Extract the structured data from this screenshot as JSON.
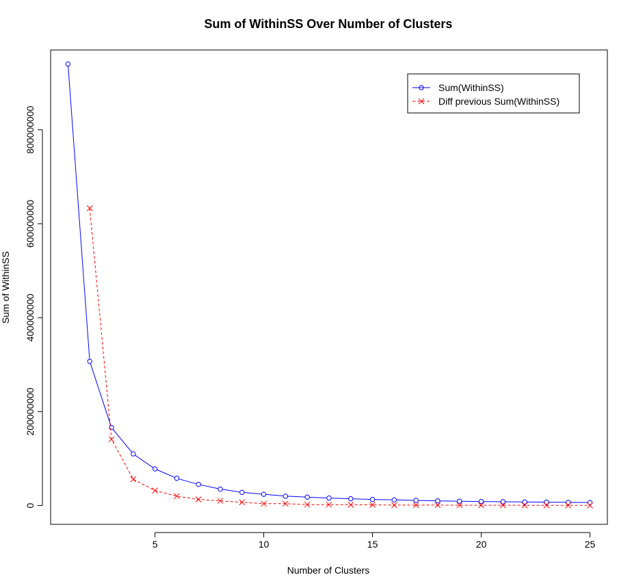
{
  "chart_data": {
    "type": "line",
    "title": "Sum of WithinSS Over Number of Clusters",
    "xlabel": "Number of Clusters",
    "ylabel": "Sum of WithinSS",
    "xlim": [
      0.2,
      25.8
    ],
    "ylim": [
      -40000000,
      970000000
    ],
    "x_ticks": [
      5,
      10,
      15,
      20,
      25
    ],
    "y_ticks": [
      0,
      200000000,
      400000000,
      600000000,
      800000000
    ],
    "y_tick_labels": [
      "0",
      "200000000",
      "400000000",
      "600000000",
      "800000000"
    ],
    "grid": false,
    "legend_position": "top-right",
    "series": [
      {
        "name": "Sum(WithinSS)",
        "color": "#0000ff",
        "marker": "circle",
        "line": "solid",
        "x": [
          1,
          2,
          3,
          4,
          5,
          6,
          7,
          8,
          9,
          10,
          11,
          12,
          13,
          14,
          15,
          16,
          17,
          18,
          19,
          20,
          21,
          22,
          23,
          24,
          25
        ],
        "values": [
          940000000,
          307000000,
          166000000,
          110000000,
          78000000,
          58000000,
          45000000,
          35000000,
          28000000,
          24000000,
          20000000,
          18000000,
          16000000,
          14500000,
          13000000,
          12000000,
          11000000,
          10000000,
          9300000,
          8700000,
          8100000,
          7600000,
          7200000,
          6800000,
          6500000
        ]
      },
      {
        "name": "Diff previous Sum(WithinSS)",
        "color": "#ff0000",
        "marker": "x",
        "line": "dashed",
        "x": [
          2,
          3,
          4,
          5,
          6,
          7,
          8,
          9,
          10,
          11,
          12,
          13,
          14,
          15,
          16,
          17,
          18,
          19,
          20,
          21,
          22,
          23,
          24,
          25
        ],
        "values": [
          633000000,
          141000000,
          56000000,
          32000000,
          20000000,
          13000000,
          10000000,
          7000000,
          4000000,
          4000000,
          2000000,
          2000000,
          1500000,
          1500000,
          1000000,
          1000000,
          1000000,
          700000,
          600000,
          600000,
          500000,
          400000,
          400000,
          300000
        ]
      }
    ]
  },
  "colors": {
    "axis": "#000000",
    "background": "#ffffff"
  }
}
